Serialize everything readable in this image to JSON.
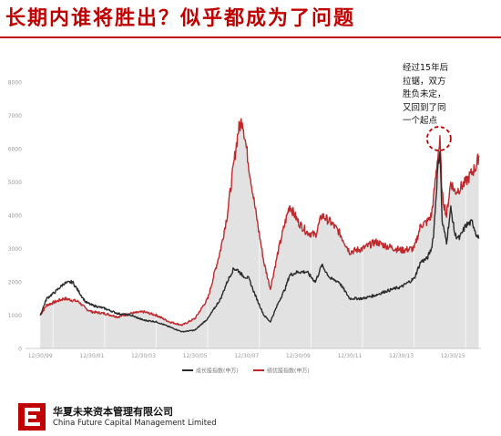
{
  "header": {
    "title": "长期内谁将胜出？似乎都成为了问题"
  },
  "annotation": {
    "lines": [
      "经过15年后",
      "拉锯，双方",
      "胜负未定，",
      "又回到了同",
      "一个起点"
    ]
  },
  "footer": {
    "company_cn": "华夏未来资本管理有限公司",
    "company_en": "China Future Capital Management Limited"
  },
  "colors": {
    "title": "#c00000",
    "growth_line": "#2b2b2b",
    "value_line": "#c0282c",
    "fill": "#e2e2e2",
    "logo": "#c00000"
  },
  "chart_data": {
    "type": "line",
    "x_start": "1999-12-30",
    "x_end": "2016-12-30",
    "xlim": [
      "1999-06-30",
      "2017-01-30"
    ],
    "x_tick_dates": [
      "1999-12-30",
      "2001-12-30",
      "2003-12-30",
      "2005-12-30",
      "2007-12-30",
      "2009-12-30",
      "2011-12-30",
      "2013-12-30",
      "2015-12-30"
    ],
    "x_tick_labels": [
      "12/30/99",
      "12/30/01",
      "12/30/03",
      "12/30/05",
      "12/30/07",
      "12/30/09",
      "12/30/11",
      "12/30/13",
      "12/30/15"
    ],
    "ylim": [
      0,
      8000
    ],
    "y_ticks": [
      0,
      1000,
      2000,
      3000,
      4000,
      5000,
      6000,
      7000,
      8000
    ],
    "grid": false,
    "legend_position": "bottom",
    "series": [
      {
        "name": "成长股指数(申万)",
        "color": "#2b2b2b",
        "points": [
          [
            "1999-12-30",
            1000
          ],
          [
            "2000-03-30",
            1500
          ],
          [
            "2000-07-30",
            1700
          ],
          [
            "2000-11-30",
            1950
          ],
          [
            "2001-03-30",
            2000
          ],
          [
            "2001-06-30",
            1700
          ],
          [
            "2001-09-30",
            1400
          ],
          [
            "2001-12-30",
            1300
          ],
          [
            "2002-06-30",
            1200
          ],
          [
            "2002-12-30",
            1050
          ],
          [
            "2003-06-30",
            1000
          ],
          [
            "2003-12-30",
            850
          ],
          [
            "2004-06-30",
            800
          ],
          [
            "2004-12-30",
            650
          ],
          [
            "2005-06-30",
            500
          ],
          [
            "2005-12-30",
            550
          ],
          [
            "2006-06-30",
            900
          ],
          [
            "2006-12-30",
            1500
          ],
          [
            "2007-03-30",
            2000
          ],
          [
            "2007-06-30",
            2400
          ],
          [
            "2007-08-30",
            2350
          ],
          [
            "2007-10-30",
            2200
          ],
          [
            "2008-01-30",
            2100
          ],
          [
            "2008-04-30",
            1600
          ],
          [
            "2008-08-30",
            1000
          ],
          [
            "2008-11-30",
            800
          ],
          [
            "2009-03-30",
            1400
          ],
          [
            "2009-06-30",
            1800
          ],
          [
            "2009-08-30",
            2200
          ],
          [
            "2009-12-30",
            2300
          ],
          [
            "2010-04-30",
            2300
          ],
          [
            "2010-08-30",
            2000
          ],
          [
            "2010-11-30",
            2500
          ],
          [
            "2011-03-30",
            2100
          ],
          [
            "2011-07-30",
            2000
          ],
          [
            "2011-12-30",
            1500
          ],
          [
            "2012-06-30",
            1500
          ],
          [
            "2012-12-30",
            1600
          ],
          [
            "2013-04-30",
            1700
          ],
          [
            "2013-09-30",
            1800
          ],
          [
            "2013-12-30",
            1850
          ],
          [
            "2014-06-30",
            2100
          ],
          [
            "2014-09-30",
            2600
          ],
          [
            "2014-12-30",
            2700
          ],
          [
            "2015-02-28",
            3000
          ],
          [
            "2015-03-30",
            3400
          ],
          [
            "2015-05-30",
            5400
          ],
          [
            "2015-06-30",
            6000
          ],
          [
            "2015-07-30",
            3800
          ],
          [
            "2015-09-30",
            3200
          ],
          [
            "2015-11-30",
            4200
          ],
          [
            "2016-01-30",
            3400
          ],
          [
            "2016-03-30",
            3300
          ],
          [
            "2016-06-30",
            3700
          ],
          [
            "2016-09-30",
            3800
          ],
          [
            "2016-11-30",
            3400
          ],
          [
            "2016-12-30",
            3300
          ]
        ]
      },
      {
        "name": "绩优股指数(申万)",
        "color": "#c0282c",
        "points": [
          [
            "1999-12-30",
            1000
          ],
          [
            "2000-03-30",
            1300
          ],
          [
            "2000-07-30",
            1400
          ],
          [
            "2000-11-30",
            1500
          ],
          [
            "2001-03-30",
            1450
          ],
          [
            "2001-06-30",
            1400
          ],
          [
            "2001-09-30",
            1200
          ],
          [
            "2001-12-30",
            1100
          ],
          [
            "2002-06-30",
            1050
          ],
          [
            "2002-12-30",
            950
          ],
          [
            "2003-06-30",
            1050
          ],
          [
            "2003-12-30",
            1100
          ],
          [
            "2004-06-30",
            1000
          ],
          [
            "2004-12-30",
            800
          ],
          [
            "2005-06-30",
            700
          ],
          [
            "2005-12-30",
            900
          ],
          [
            "2006-06-30",
            1500
          ],
          [
            "2006-12-30",
            3000
          ],
          [
            "2007-03-30",
            4000
          ],
          [
            "2007-06-30",
            5500
          ],
          [
            "2007-08-30",
            6500
          ],
          [
            "2007-10-30",
            6900
          ],
          [
            "2008-01-30",
            5500
          ],
          [
            "2008-04-30",
            4200
          ],
          [
            "2008-08-30",
            2600
          ],
          [
            "2008-11-30",
            1800
          ],
          [
            "2009-03-30",
            3000
          ],
          [
            "2009-06-30",
            3800
          ],
          [
            "2009-08-30",
            4300
          ],
          [
            "2009-12-30",
            3800
          ],
          [
            "2010-04-30",
            3500
          ],
          [
            "2010-08-30",
            3400
          ],
          [
            "2010-11-30",
            4000
          ],
          [
            "2011-03-30",
            3800
          ],
          [
            "2011-07-30",
            3500
          ],
          [
            "2011-12-30",
            2900
          ],
          [
            "2012-06-30",
            3000
          ],
          [
            "2012-12-30",
            3200
          ],
          [
            "2013-04-30",
            3100
          ],
          [
            "2013-09-30",
            3000
          ],
          [
            "2013-12-30",
            2950
          ],
          [
            "2014-06-30",
            3000
          ],
          [
            "2014-09-30",
            3700
          ],
          [
            "2014-12-30",
            3800
          ],
          [
            "2015-02-28",
            4000
          ],
          [
            "2015-03-30",
            4500
          ],
          [
            "2015-05-30",
            5800
          ],
          [
            "2015-06-30",
            6200
          ],
          [
            "2015-07-30",
            4600
          ],
          [
            "2015-09-30",
            4000
          ],
          [
            "2015-11-30",
            5000
          ],
          [
            "2016-01-30",
            4700
          ],
          [
            "2016-03-30",
            4800
          ],
          [
            "2016-06-30",
            5000
          ],
          [
            "2016-09-30",
            5300
          ],
          [
            "2016-11-30",
            5500
          ],
          [
            "2016-12-30",
            5800
          ]
        ]
      }
    ],
    "annotations": [
      {
        "type": "dashed-circle",
        "x": "2015-06-15",
        "y": 6300
      }
    ]
  }
}
